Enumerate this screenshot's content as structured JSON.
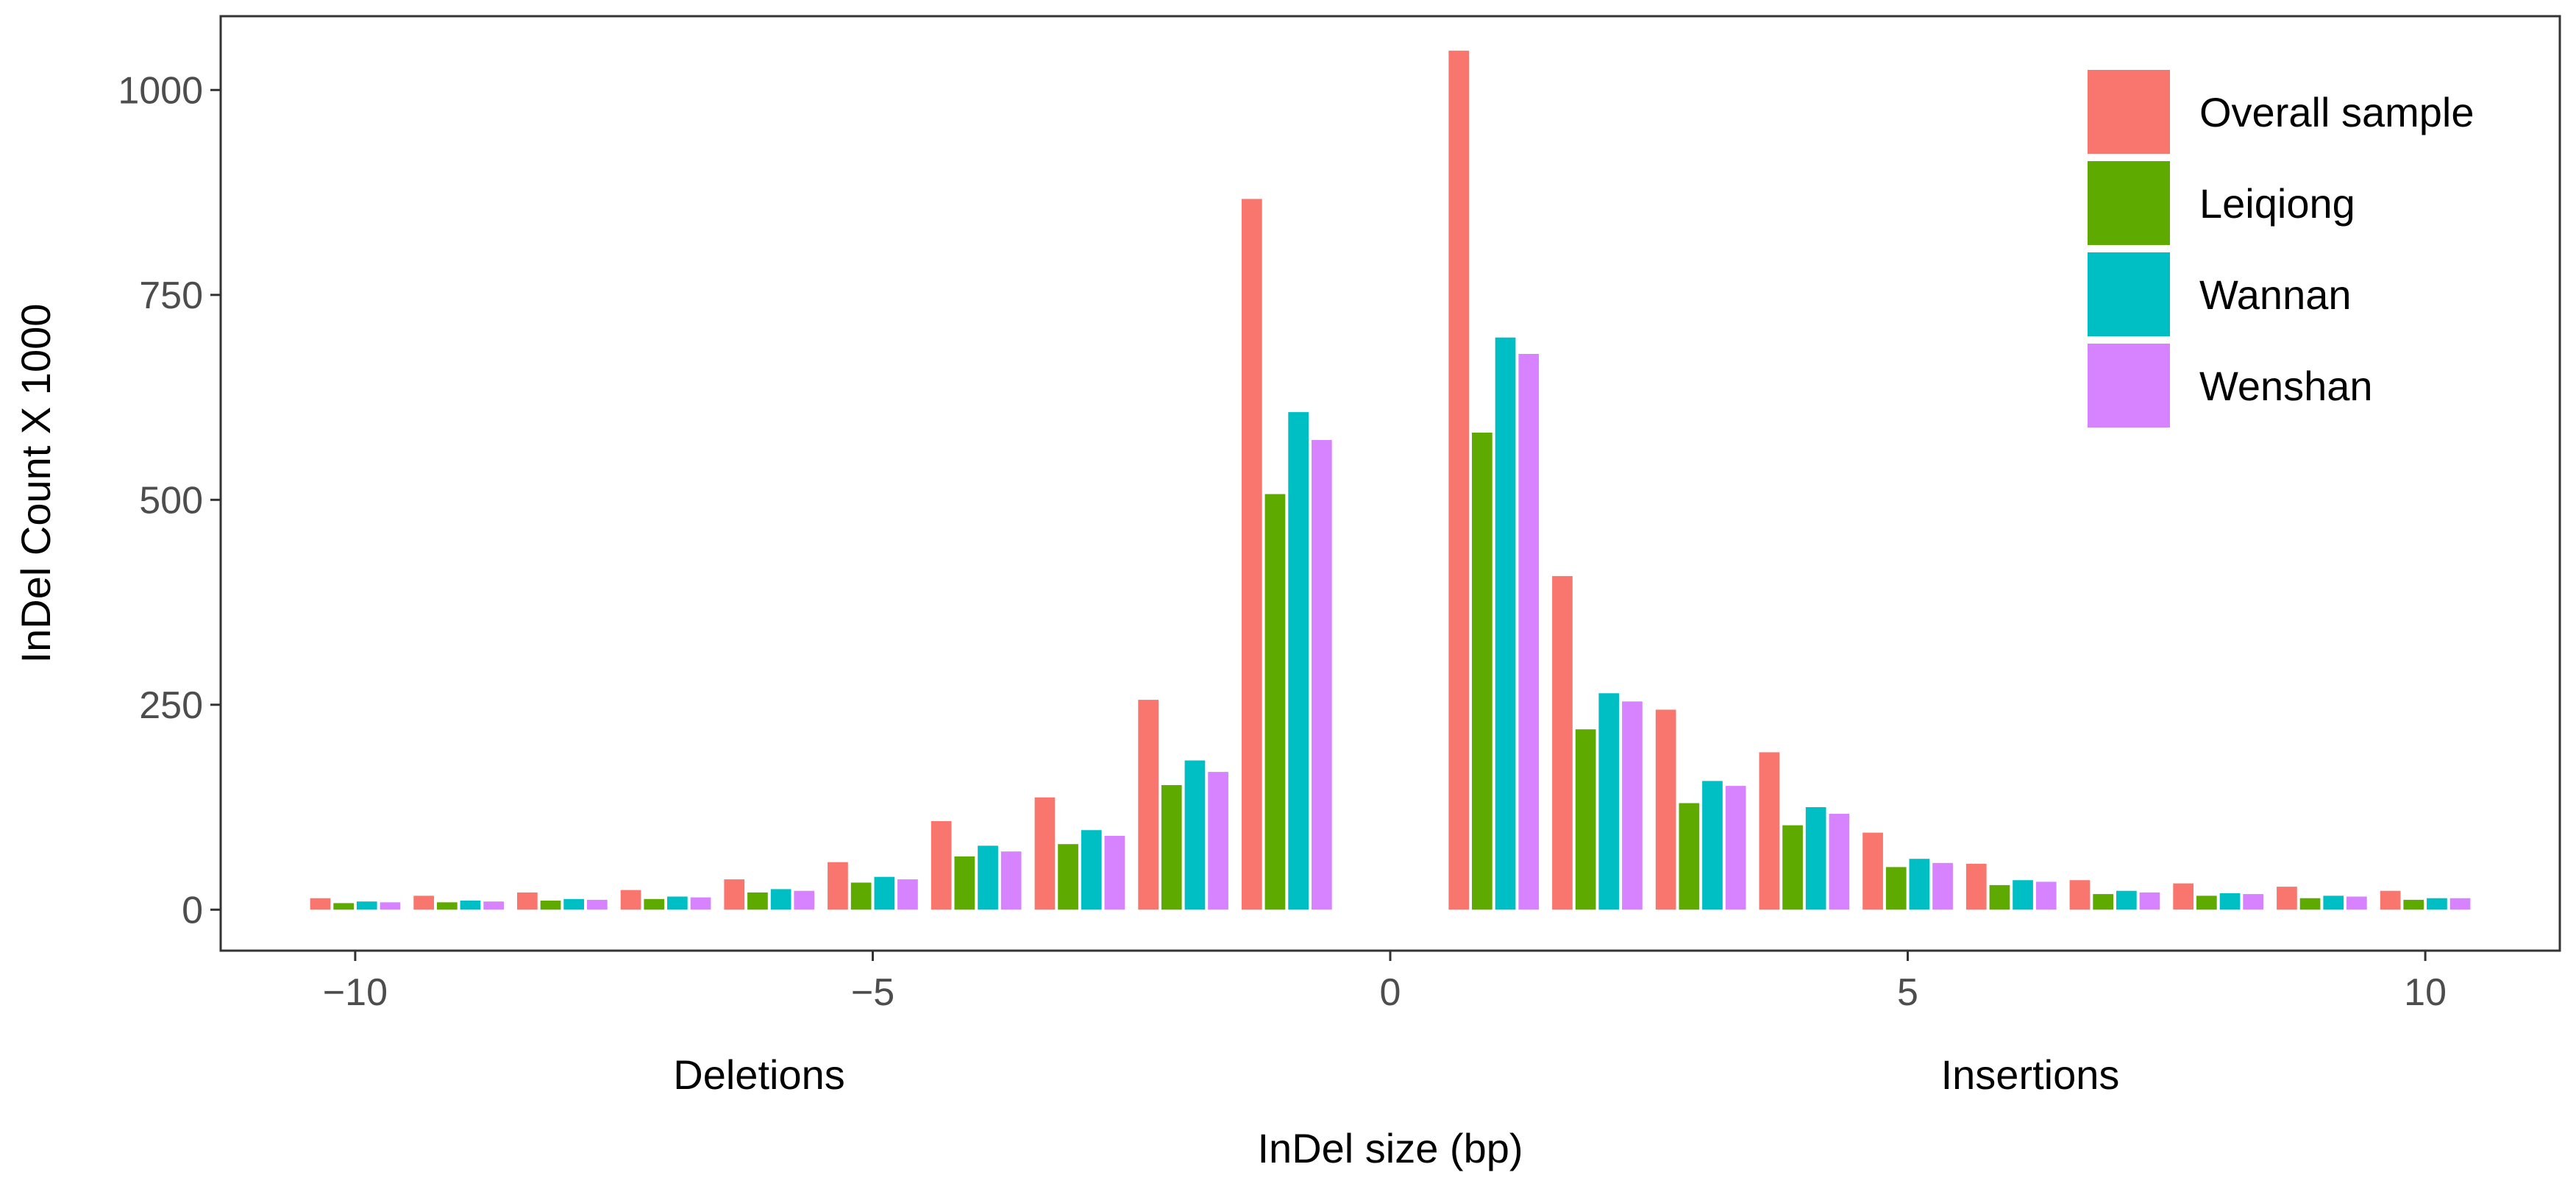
{
  "chart_data": {
    "type": "bar",
    "title": "",
    "xlabel": "InDel size (bp)",
    "ylabel": "InDel Count  X 1000",
    "xlim": [
      -11.3,
      11.3
    ],
    "ylim": [
      -50,
      1090
    ],
    "xticks": [
      -10,
      -5,
      0,
      5,
      10
    ],
    "xtick_labels": [
      "−10",
      "−5",
      "0",
      "5",
      "10"
    ],
    "yticks": [
      0,
      250,
      500,
      750,
      1000
    ],
    "ytick_labels": [
      "0",
      "250",
      "500",
      "750",
      "1000"
    ],
    "group_labels": [
      "Deletions",
      "Insertions"
    ],
    "grid": false,
    "legend_position": "top-right",
    "categories": [
      -10,
      -9,
      -8,
      -7,
      -6,
      -5,
      -4,
      -3,
      -2,
      -1,
      1,
      2,
      3,
      4,
      5,
      6,
      7,
      8,
      9,
      10
    ],
    "series": [
      {
        "name": "Overall sample",
        "color": "#F8766D",
        "values": [
          14,
          17,
          21,
          24,
          37,
          58,
          108,
          137,
          256,
          867,
          1048,
          407,
          244,
          192,
          94,
          56,
          36,
          32,
          28,
          23
        ]
      },
      {
        "name": "Leiqiong",
        "color": "#5FAA00",
        "values": [
          8,
          9,
          11,
          13,
          21,
          33,
          65,
          80,
          152,
          507,
          582,
          220,
          130,
          103,
          52,
          30,
          19,
          17,
          14,
          12
        ]
      },
      {
        "name": "Wannan",
        "color": "#00BFC4",
        "values": [
          10,
          11,
          13,
          16,
          25,
          40,
          78,
          97,
          182,
          607,
          698,
          264,
          157,
          125,
          62,
          36,
          23,
          20,
          17,
          14
        ]
      },
      {
        "name": "Wenshan",
        "color": "#D783FF",
        "values": [
          9,
          10,
          12,
          15,
          23,
          37,
          71,
          90,
          168,
          573,
          678,
          254,
          151,
          117,
          57,
          34,
          21,
          19,
          16,
          14
        ]
      }
    ]
  }
}
